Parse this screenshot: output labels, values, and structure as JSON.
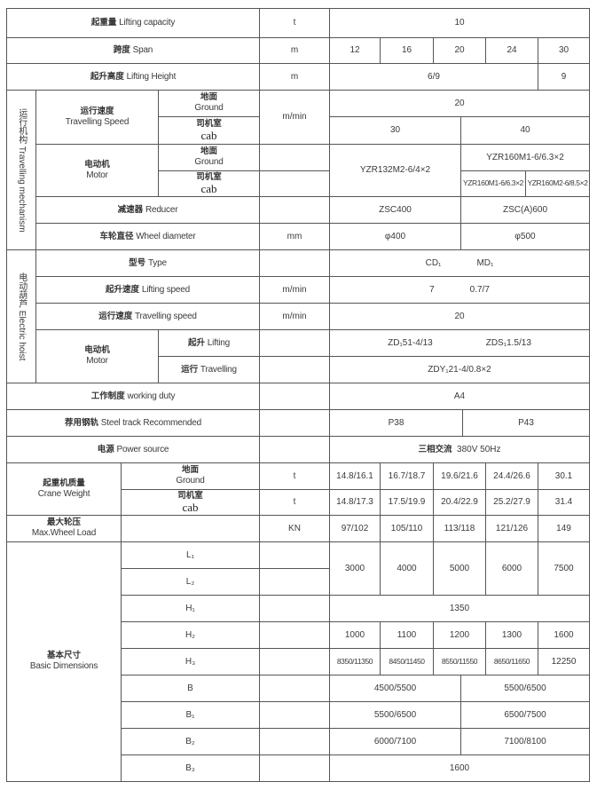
{
  "ground": {
    "cn": "地面",
    "en": "Ground"
  },
  "cab": {
    "cn": "司机室",
    "en": "cab"
  },
  "capacity": {
    "cn": "起重量",
    "en": "Lifting  capacity",
    "unit": "t",
    "value": "10"
  },
  "span": {
    "cn": "跨度",
    "en": "Span",
    "unit": "m",
    "values": [
      "12",
      "16",
      "20",
      "24",
      "30"
    ]
  },
  "lifting_height": {
    "cn": "起升高度",
    "en": "Lifting  Height",
    "unit": "m",
    "values": [
      "6/9",
      "9"
    ]
  },
  "travelling_mechanism": {
    "section": "运行机构  Travelling mechanism",
    "speed": {
      "cn": "运行速度",
      "en": "Travelling Speed",
      "unit": "m/min",
      "ground": "20",
      "cab": [
        "30",
        "40"
      ]
    },
    "motor": {
      "cn": "电动机",
      "en": "Motor",
      "shared": "YZR132M2-6/4×2",
      "ground": "YZR160M1-6/6.3×2",
      "cab": [
        "YZR160M1-6/6.3×2",
        "YZR160M2-6/8.5×2"
      ]
    },
    "reducer": {
      "cn": "减速器",
      "en": "Reducer",
      "values": [
        "ZSC400",
        "ZSC(A)600"
      ]
    },
    "wheel": {
      "cn": "车轮直径",
      "en": "Wheel diameter",
      "unit": "mm",
      "values": [
        "φ400",
        "φ500"
      ]
    }
  },
  "electric_hoist": {
    "section": "电动葫芦  Electric hoist",
    "type": {
      "cn": "型号",
      "en": "Type",
      "values": [
        "CD₁",
        "MD₁"
      ]
    },
    "lifting_speed": {
      "cn": "起升速度",
      "en": "Lifting speed",
      "unit": "m/min",
      "values": [
        "7",
        "0.7/7"
      ]
    },
    "travelling_speed": {
      "cn": "运行速度",
      "en": "Travelling speed",
      "unit": "m/min",
      "value": "20"
    },
    "motor": {
      "cn": "电动机",
      "en": "Motor",
      "lifting_cn": "起升",
      "lifting_en": "Lifting",
      "lifting_values": [
        "ZD₁51-4/13",
        "ZDS₁1.5/13"
      ],
      "travelling_cn": "运行",
      "travelling_en": "Travelling",
      "travelling_value": "ZDY₁21-4/0.8×2"
    }
  },
  "working_duty": {
    "cn": "工作制度",
    "en": "working duty",
    "value": "A4"
  },
  "steel_track": {
    "cn": "荐用钢轨",
    "en": "Steel track Recommended",
    "values": [
      "P38",
      "P43"
    ]
  },
  "power": {
    "cn": "电源",
    "en": "Power source",
    "value_cn": "三相交流",
    "value_en": "380V   50Hz"
  },
  "crane_weight": {
    "cn": "起重机质量",
    "en": "Crane Weight",
    "unit": "t",
    "ground": [
      "14.8/16.1",
      "16.7/18.7",
      "19.6/21.6",
      "24.4/26.6",
      "30.1"
    ],
    "cab": [
      "14.8/17.3",
      "17.5/19.9",
      "20.4/22.9",
      "25.2/27.9",
      "31.4"
    ]
  },
  "wheel_load": {
    "cn": "最大轮压",
    "en": "Max.Wheel Load",
    "unit": "KN",
    "values": [
      "97/102",
      "105/110",
      "113/118",
      "121/126",
      "149"
    ]
  },
  "dimensions": {
    "cn": "基本尺寸",
    "en": "Basic  Dimensions",
    "L1": "L₁",
    "L2": "L₂",
    "L_values": [
      "3000",
      "4000",
      "5000",
      "6000",
      "7500"
    ],
    "H1": "H₁",
    "H1_value": "1350",
    "H2": "H₂",
    "H2_values": [
      "1000",
      "1100",
      "1200",
      "1300",
      "1600"
    ],
    "H3": "H₃",
    "H3_values": [
      "8350/11350",
      "8450/11450",
      "8550/11550",
      "8650/11650",
      "12250"
    ],
    "B": "B",
    "B_values": [
      "4500/5500",
      "5500/6500"
    ],
    "B1": "B₁",
    "B1_values": [
      "5500/6500",
      "6500/7500"
    ],
    "B2": "B₂",
    "B2_values": [
      "6000/7100",
      "7100/8100"
    ],
    "B3": "B₃",
    "B3_value": "1600"
  }
}
